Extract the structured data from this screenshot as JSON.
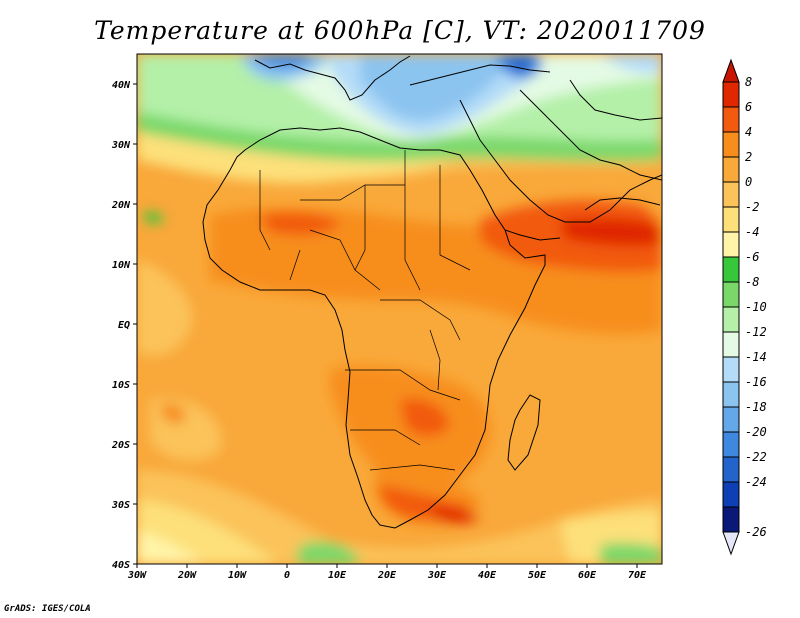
{
  "title": "Temperature at 600hPa [C], VT: 2020011709",
  "credit": "GrADS: IGES/COLA",
  "map": {
    "lon_range": [
      -30,
      75
    ],
    "lat_range": [
      -40,
      45
    ],
    "lon_ticks": [
      {
        "value": -30,
        "label": "30W"
      },
      {
        "value": -20,
        "label": "20W"
      },
      {
        "value": -10,
        "label": "10W"
      },
      {
        "value": 0,
        "label": "0"
      },
      {
        "value": 10,
        "label": "10E"
      },
      {
        "value": 20,
        "label": "20E"
      },
      {
        "value": 30,
        "label": "30E"
      },
      {
        "value": 40,
        "label": "40E"
      },
      {
        "value": 50,
        "label": "50E"
      },
      {
        "value": 60,
        "label": "60E"
      },
      {
        "value": 70,
        "label": "70E"
      }
    ],
    "lat_ticks": [
      {
        "value": 40,
        "label": "40N"
      },
      {
        "value": 30,
        "label": "30N"
      },
      {
        "value": 20,
        "label": "20N"
      },
      {
        "value": 10,
        "label": "10N"
      },
      {
        "value": 0,
        "label": "EQ"
      },
      {
        "value": -10,
        "label": "10S"
      },
      {
        "value": -20,
        "label": "20S"
      },
      {
        "value": -30,
        "label": "30S"
      },
      {
        "value": -40,
        "label": "40S"
      }
    ]
  },
  "colorbar": {
    "levels": [
      "8",
      "6",
      "4",
      "2",
      "0",
      "-2",
      "-4",
      "-6",
      "-8",
      "-10",
      "-12",
      "-14",
      "-16",
      "-18",
      "-20",
      "-22",
      "-24",
      "-26"
    ],
    "colors": [
      "#e02800",
      "#f25a10",
      "#f78e1c",
      "#f9a83a",
      "#fbc35a",
      "#fde07a",
      "#fff4a8",
      "#36c83a",
      "#7ad86a",
      "#b4f0a8",
      "#e4fae4",
      "#b4dcf8",
      "#8cc4f0",
      "#64a8ea",
      "#3e88e0",
      "#2264cc",
      "#0c40b4",
      "#0a1878"
    ],
    "top_color": "#c81400",
    "bottom_color": "#e6e6fa"
  }
}
